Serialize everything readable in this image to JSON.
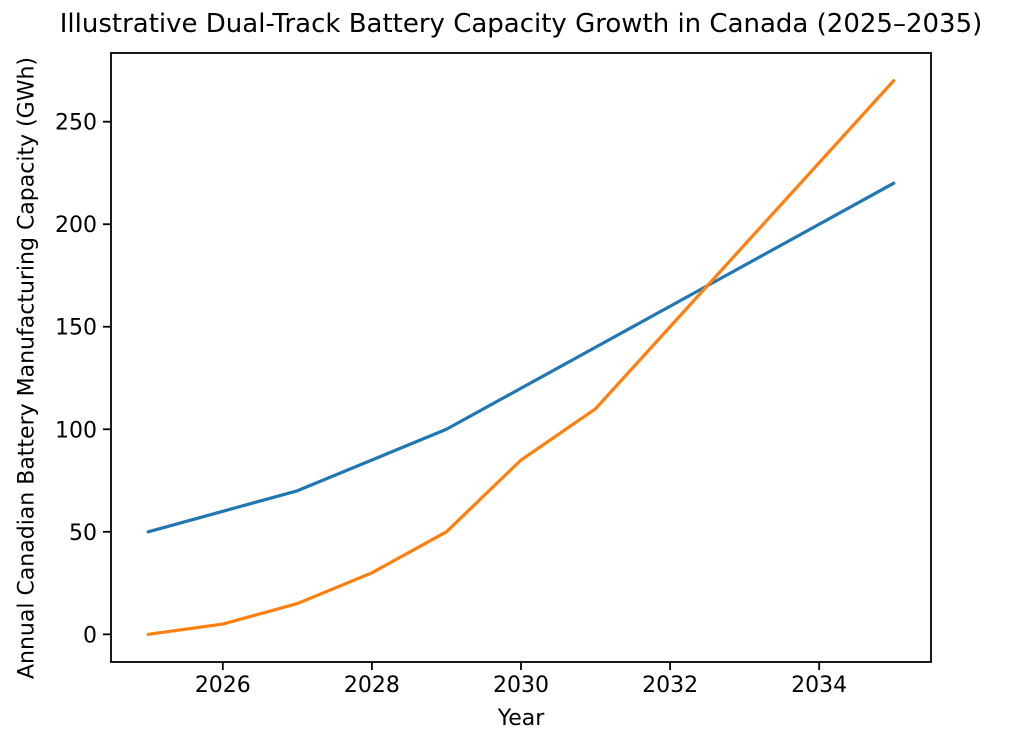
{
  "figure": {
    "background_color": "#ffffff",
    "text_color": "#000000",
    "axes_edge_color": "#000000"
  },
  "chart_data": {
    "type": "line",
    "title": "Illustrative Dual-Track Battery Capacity Growth in Canada (2025–2035)",
    "xlabel": "Year",
    "ylabel": "Annual Canadian Battery Manufacturing Capacity (GWh)",
    "x": [
      2025,
      2026,
      2027,
      2028,
      2029,
      2030,
      2031,
      2032,
      2033,
      2034,
      2035
    ],
    "series": [
      {
        "name": "blue-series",
        "color": "#1f77b4",
        "values": [
          50,
          60,
          70,
          85,
          100,
          120,
          140,
          160,
          180,
          200,
          220
        ]
      },
      {
        "name": "orange-series",
        "color": "#ff7f0e",
        "values": [
          0,
          5,
          15,
          30,
          50,
          85,
          110,
          150,
          190,
          230,
          270
        ]
      }
    ],
    "xlim": [
      2024.5,
      2035.5
    ],
    "ylim": [
      -13.5,
      283.5
    ],
    "xticks": [
      2026,
      2028,
      2030,
      2032,
      2034
    ],
    "yticks": [
      0,
      50,
      100,
      150,
      200,
      250
    ],
    "grid": false,
    "legend": null
  }
}
